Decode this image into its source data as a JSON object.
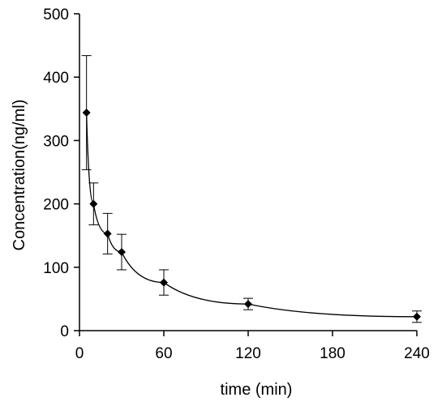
{
  "chart_data": {
    "type": "line",
    "title": "",
    "xlabel": "time (min)",
    "ylabel": "Concentration(ng/ml)",
    "xlim": [
      0,
      240
    ],
    "ylim": [
      0,
      500
    ],
    "x_ticks": [
      0,
      60,
      120,
      180,
      240
    ],
    "y_ticks": [
      0,
      100,
      200,
      300,
      400,
      500
    ],
    "x_tick_labels": [
      "0",
      "60",
      "120",
      "180",
      "240"
    ],
    "y_tick_labels": [
      "0",
      "100",
      "200",
      "300",
      "400",
      "500"
    ],
    "grid": false,
    "legend": "none",
    "marker": "diamond",
    "colors": {
      "series": "#000000"
    },
    "series": [
      {
        "x": [
          5,
          10,
          20,
          30,
          60,
          120,
          240
        ],
        "y": [
          344,
          200,
          153,
          124,
          76,
          42,
          22
        ],
        "error": [
          90,
          33,
          32,
          28,
          20,
          9,
          9
        ]
      }
    ]
  }
}
